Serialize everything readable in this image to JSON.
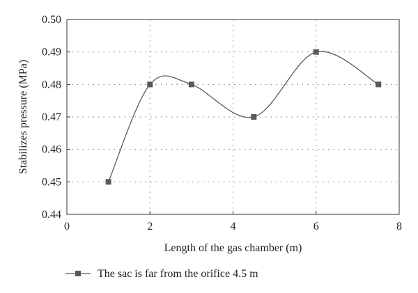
{
  "chart_data": {
    "type": "line",
    "title": "",
    "xlabel": "Length of the gas chamber (m)",
    "ylabel": "Stabilizes pressure (MPa)",
    "xlim": [
      0,
      8
    ],
    "ylim": [
      0.44,
      0.5
    ],
    "x_ticks": [
      0,
      2,
      4,
      6,
      8
    ],
    "x_tick_labels": [
      "0",
      "2",
      "4",
      "6",
      "8"
    ],
    "y_ticks": [
      0.44,
      0.45,
      0.46,
      0.47,
      0.48,
      0.49,
      0.5
    ],
    "y_tick_labels": [
      "0.44",
      "0.45",
      "0.46",
      "0.47",
      "0.48",
      "0.49",
      "0.50"
    ],
    "grid": true,
    "smooth": true,
    "legend_position": "bottom-left",
    "series": [
      {
        "name": "The sac is far from the orifice 4.5 m",
        "marker": "square",
        "color": "#595959",
        "x": [
          1,
          2,
          3,
          4.5,
          6,
          7.5
        ],
        "y": [
          0.45,
          0.48,
          0.48,
          0.47,
          0.49,
          0.48
        ]
      }
    ]
  }
}
